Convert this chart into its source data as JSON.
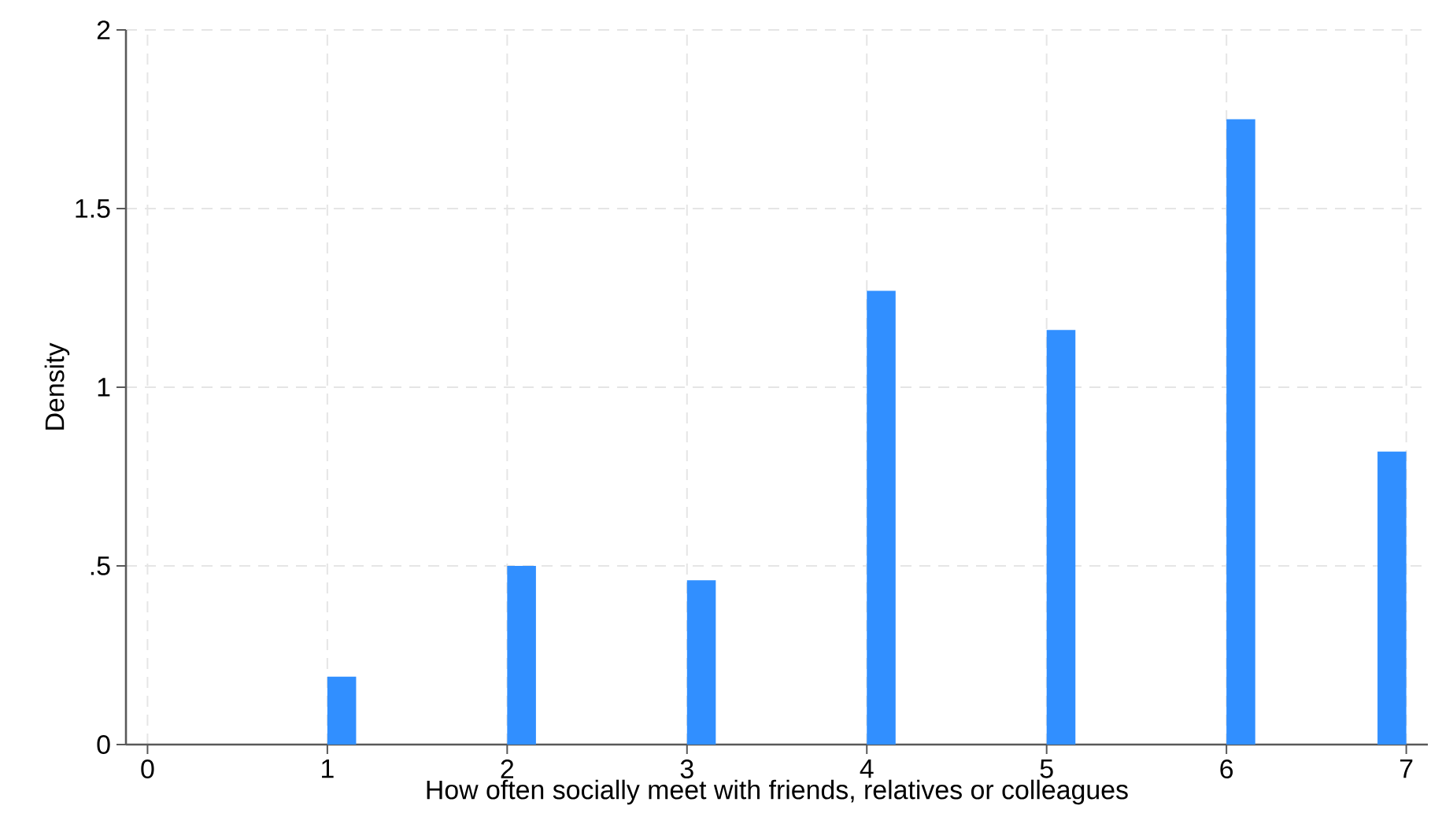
{
  "chart_data": {
    "type": "histogram",
    "xlabel": "How often socially meet with friends, relatives or colleagues",
    "ylabel": "Density",
    "bins": [
      1,
      1.16,
      2,
      2.16,
      3,
      3.16,
      4,
      4.16,
      5,
      5.16,
      6,
      6.16,
      6.84,
      7
    ],
    "values": [
      0.19,
      0,
      0.5,
      0,
      0.46,
      0,
      1.27,
      0,
      1.16,
      0,
      1.75,
      0,
      0.82
    ],
    "color": "#318fff",
    "xlim": [
      -0.12,
      7.12
    ],
    "ylim": [
      0,
      2
    ],
    "xticks": [
      0,
      1,
      2,
      3,
      4,
      5,
      6,
      7
    ],
    "yticks": [
      0,
      {
        "value": 0.5,
        "label": ".5"
      },
      1,
      1.5,
      2
    ],
    "grid": true
  }
}
